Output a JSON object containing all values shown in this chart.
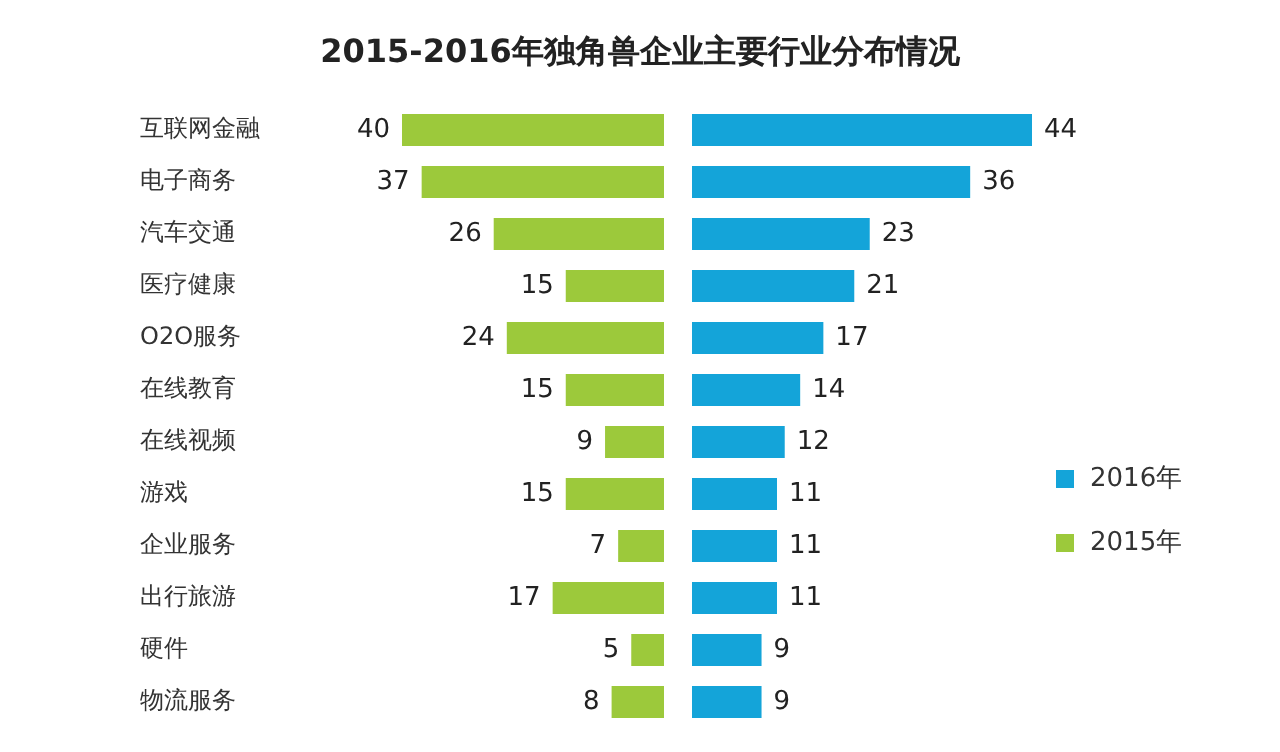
{
  "chart_data": [
    {
      "type": "bar",
      "orientation": "horizontal",
      "title": "2015-2016年独角兽企业主要行业分布情况",
      "categories": [
        "互联网金融",
        "电子商务",
        "汽车交通",
        "医疗健康",
        "O2O服务",
        "在线教育",
        "在线视频",
        "游戏",
        "企业服务",
        "出行旅游",
        "硬件",
        "物流服务"
      ],
      "series": [
        {
          "name": "2015年",
          "color": "#9cc93b",
          "values": [
            40,
            37,
            26,
            15,
            24,
            15,
            9,
            15,
            7,
            17,
            5,
            8
          ]
        }
      ],
      "xlim": [
        40,
        0
      ],
      "tick_labels": "y",
      "data_labels": true,
      "legend": "right"
    },
    {
      "type": "bar",
      "orientation": "horizontal",
      "categories": [
        null,
        null,
        null,
        null,
        null,
        null,
        null,
        null,
        null,
        null,
        null,
        null
      ],
      "series": [
        {
          "name": "2016年",
          "color": "#14a4d9",
          "values": [
            44,
            36,
            23,
            21,
            17,
            14,
            12,
            11,
            11,
            11,
            9,
            9
          ]
        }
      ],
      "xlim": [
        0,
        44
      ],
      "tick_labels": false,
      "data_labels": true,
      "legend": "right"
    }
  ]
}
